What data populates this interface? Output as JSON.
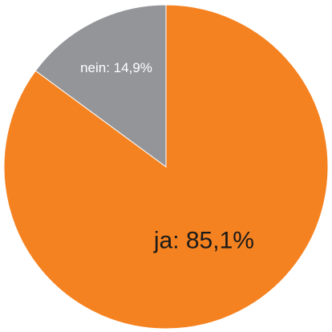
{
  "chart_data": {
    "type": "pie",
    "start_angle_deg": 0,
    "direction": "clockwise",
    "slices": [
      {
        "label": "ja: 85,1%",
        "value": 85.1,
        "color": "#f58220",
        "label_color": "#1a1a1a"
      },
      {
        "label": "nein: 14,9%",
        "value": 14.9,
        "color": "#939598",
        "label_color": "#ffffff"
      }
    ]
  }
}
